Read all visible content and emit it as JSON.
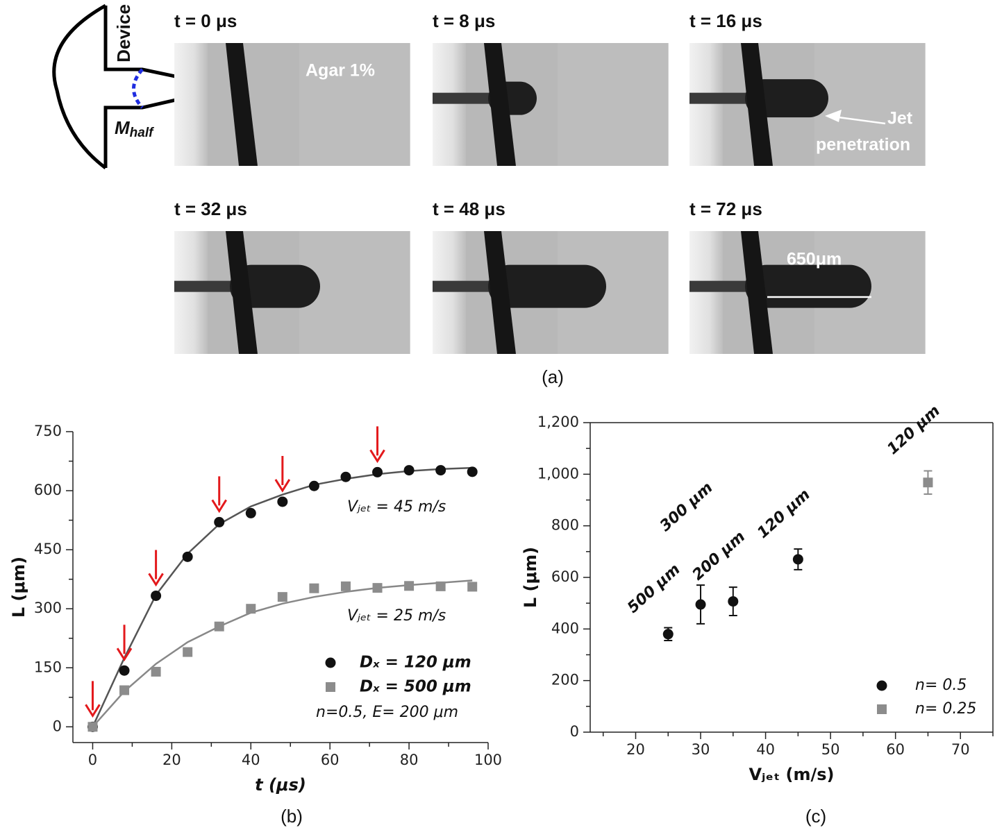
{
  "panel_a": {
    "frames": [
      "t = 0 μs",
      "t = 8 μs",
      "t = 16 μs",
      "t = 32 μs",
      "t = 48 μs",
      "t = 72 μs"
    ],
    "device": "Device",
    "m_half": {
      "base": "M",
      "sub": "half"
    },
    "agar": "Agar 1%",
    "jet": [
      "Jet",
      "penetration"
    ],
    "length_label": "650μm",
    "caption": "(a)"
  },
  "chart_data": [
    {
      "type": "scatter",
      "caption": "(b)",
      "xlabel": "t (μs)",
      "ylabel": "L (μm)",
      "xlim": [
        -5,
        100
      ],
      "xticks": [
        0,
        20,
        40,
        60,
        80,
        100
      ],
      "xminorticks": [
        10,
        30,
        50,
        70,
        90
      ],
      "ylim": [
        -40,
        750
      ],
      "yticks": [
        0,
        150,
        300,
        450,
        600,
        750
      ],
      "yminorticks": [
        75,
        225,
        375,
        525,
        675
      ],
      "frame": "left-bottom",
      "legend": "lower right",
      "x": [
        0,
        8,
        16,
        24,
        32,
        40,
        48,
        56,
        64,
        72,
        80,
        88,
        96
      ],
      "series": [
        {
          "name": "Dₓ = 120 μm",
          "color": "#111111",
          "marker": "circle",
          "values": [
            0,
            143,
            333,
            432,
            520,
            543,
            572,
            612,
            635,
            647,
            652,
            652,
            648
          ],
          "fit": [
            0,
            175,
            335,
            440,
            515,
            560,
            590,
            615,
            630,
            642,
            650,
            655,
            658
          ],
          "fit_color": "#555555"
        },
        {
          "name": "Dₓ = 500 μm",
          "color": "#8c8c8c",
          "marker": "square",
          "values": [
            0,
            93,
            140,
            190,
            255,
            300,
            330,
            352,
            357,
            353,
            358,
            357,
            356
          ],
          "fit": [
            0,
            90,
            160,
            215,
            255,
            290,
            313,
            330,
            343,
            353,
            360,
            366,
            372
          ],
          "fit_color": "#888888"
        }
      ],
      "arrows_x": [
        0,
        8,
        16,
        32,
        48,
        72
      ],
      "arrow_color": "#e3191c",
      "annotations": [
        "Vⱼₑₜ = 45 m/s",
        "Vⱼₑₜ = 25 m/s",
        "n=0.5, E= 200 μm"
      ]
    },
    {
      "type": "errorbar",
      "caption": "(c)",
      "xlabel": "Vⱼₑₜ (m/s)",
      "ylabel": "L (μm)",
      "xlim": [
        13,
        75
      ],
      "xticks": [
        20,
        30,
        40,
        50,
        60,
        70
      ],
      "xminorticks": [
        15,
        25,
        35,
        45,
        55,
        65,
        75
      ],
      "ylim": [
        0,
        1200
      ],
      "yticks": [
        0,
        200,
        400,
        600,
        800,
        {
          "value": 1000,
          "label": "1,000"
        },
        {
          "value": 1200,
          "label": "1,200"
        }
      ],
      "yminorticks": [
        100,
        300,
        500,
        700,
        900,
        1100
      ],
      "frame": "box",
      "legend": "lower right",
      "series": [
        {
          "name": "n= 0.5",
          "color": "#111111",
          "marker": "circle",
          "x": [
            25,
            30,
            35,
            45
          ],
          "values": [
            380,
            495,
            507,
            670
          ],
          "errors": [
            25,
            75,
            55,
            40
          ],
          "labels": [
            "500 μm",
            "300 μm",
            "200 μm",
            "120 μm"
          ]
        },
        {
          "name": "n= 0.25",
          "color": "#8c8c8c",
          "marker": "square",
          "x": [
            65
          ],
          "values": [
            968
          ],
          "errors": [
            45
          ],
          "labels": [
            "120 μm"
          ]
        }
      ]
    }
  ]
}
